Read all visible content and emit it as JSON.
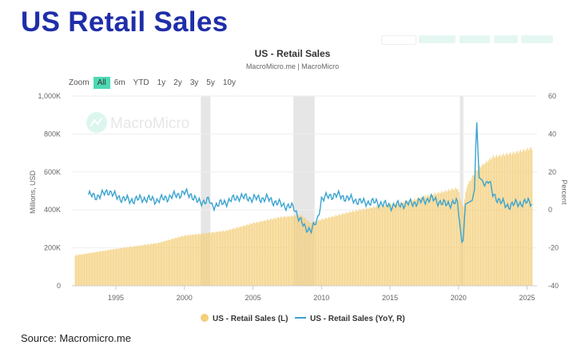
{
  "page_title": "US Retail Sales",
  "source": "Source: Macromicro.me",
  "watermark": "MacroMicro",
  "zoom": {
    "label": "Zoom",
    "options": [
      "All",
      "6m",
      "YTD",
      "1y",
      "2y",
      "3y",
      "5y",
      "10y"
    ],
    "active": "All"
  },
  "chart_data": {
    "type": "bar+line",
    "title": "US - Retail Sales",
    "subtitle": "MacroMicro.me | MacroMicro",
    "ylabel": "Millions, USD",
    "y2label": "Percent",
    "ylim": [
      0,
      1000000
    ],
    "y2lim": [
      -40,
      60
    ],
    "yticks": [
      "0",
      "200K",
      "400K",
      "600K",
      "800K",
      "1,000K"
    ],
    "y2ticks": [
      "-40",
      "-20",
      "0",
      "20",
      "40",
      "60"
    ],
    "xticks": [
      "1995",
      "2000",
      "2005",
      "2010",
      "2015",
      "2020",
      "2025"
    ],
    "xlim": [
      1992,
      2025.5
    ],
    "recessions": [
      [
        2001.2,
        2001.9
      ],
      [
        2007.95,
        2009.5
      ],
      [
        2020.1,
        2020.35
      ]
    ],
    "colors": {
      "bar": "#f3cf7a",
      "line": "#3aa3cf",
      "recession": "#e6e6e6"
    },
    "series": [
      {
        "name": "US - Retail Sales (L)",
        "type": "bar",
        "unit": "K USD (millions)",
        "points": [
          [
            1992,
            160
          ],
          [
            1995,
            195
          ],
          [
            1998,
            225
          ],
          [
            2000,
            265
          ],
          [
            2001,
            272
          ],
          [
            2003,
            290
          ],
          [
            2005,
            330
          ],
          [
            2007,
            362
          ],
          [
            2008.5,
            372
          ],
          [
            2009.2,
            330
          ],
          [
            2010,
            350
          ],
          [
            2012,
            388
          ],
          [
            2014,
            418
          ],
          [
            2016,
            440
          ],
          [
            2018,
            480
          ],
          [
            2019.9,
            515
          ],
          [
            2020.3,
            410
          ],
          [
            2020.6,
            530
          ],
          [
            2021.2,
            600
          ],
          [
            2021.5,
            625
          ],
          [
            2022.5,
            680
          ],
          [
            2024,
            700
          ],
          [
            2025.3,
            725
          ]
        ]
      },
      {
        "name": "US - Retail Sales (YoY, R)",
        "type": "line",
        "unit": "%",
        "points": [
          [
            1993,
            8
          ],
          [
            1993.5,
            7
          ],
          [
            1994,
            8
          ],
          [
            1994.5,
            10
          ],
          [
            1995,
            7
          ],
          [
            1996,
            5
          ],
          [
            1997,
            6
          ],
          [
            1998,
            5
          ],
          [
            1999,
            7
          ],
          [
            2000,
            9
          ],
          [
            2000.5,
            8
          ],
          [
            2001,
            4
          ],
          [
            2001.8,
            5
          ],
          [
            2002,
            2
          ],
          [
            2003,
            4
          ],
          [
            2004,
            7
          ],
          [
            2005,
            6
          ],
          [
            2006,
            6
          ],
          [
            2007,
            3
          ],
          [
            2008,
            1
          ],
          [
            2008.8,
            -10
          ],
          [
            2009.3,
            -10
          ],
          [
            2009.7,
            -6
          ],
          [
            2010,
            6
          ],
          [
            2010.5,
            7
          ],
          [
            2011,
            8
          ],
          [
            2012,
            6
          ],
          [
            2013,
            4
          ],
          [
            2014,
            4
          ],
          [
            2015,
            2
          ],
          [
            2016,
            3
          ],
          [
            2017,
            4
          ],
          [
            2018,
            6
          ],
          [
            2019,
            3
          ],
          [
            2019.9,
            4
          ],
          [
            2020.3,
            -20
          ],
          [
            2020.5,
            3
          ],
          [
            2021,
            5
          ],
          [
            2021.2,
            12
          ],
          [
            2021.3,
            52
          ],
          [
            2021.5,
            17
          ],
          [
            2022,
            14
          ],
          [
            2022.2,
            16
          ],
          [
            2022.5,
            8
          ],
          [
            2023,
            5
          ],
          [
            2023.5,
            2
          ],
          [
            2024,
            3
          ],
          [
            2025,
            4
          ],
          [
            2025.3,
            4
          ]
        ]
      }
    ],
    "legend": {
      "position": "bottom",
      "entries": [
        "US - Retail Sales (L)",
        "US - Retail Sales (YoY, R)"
      ]
    }
  }
}
